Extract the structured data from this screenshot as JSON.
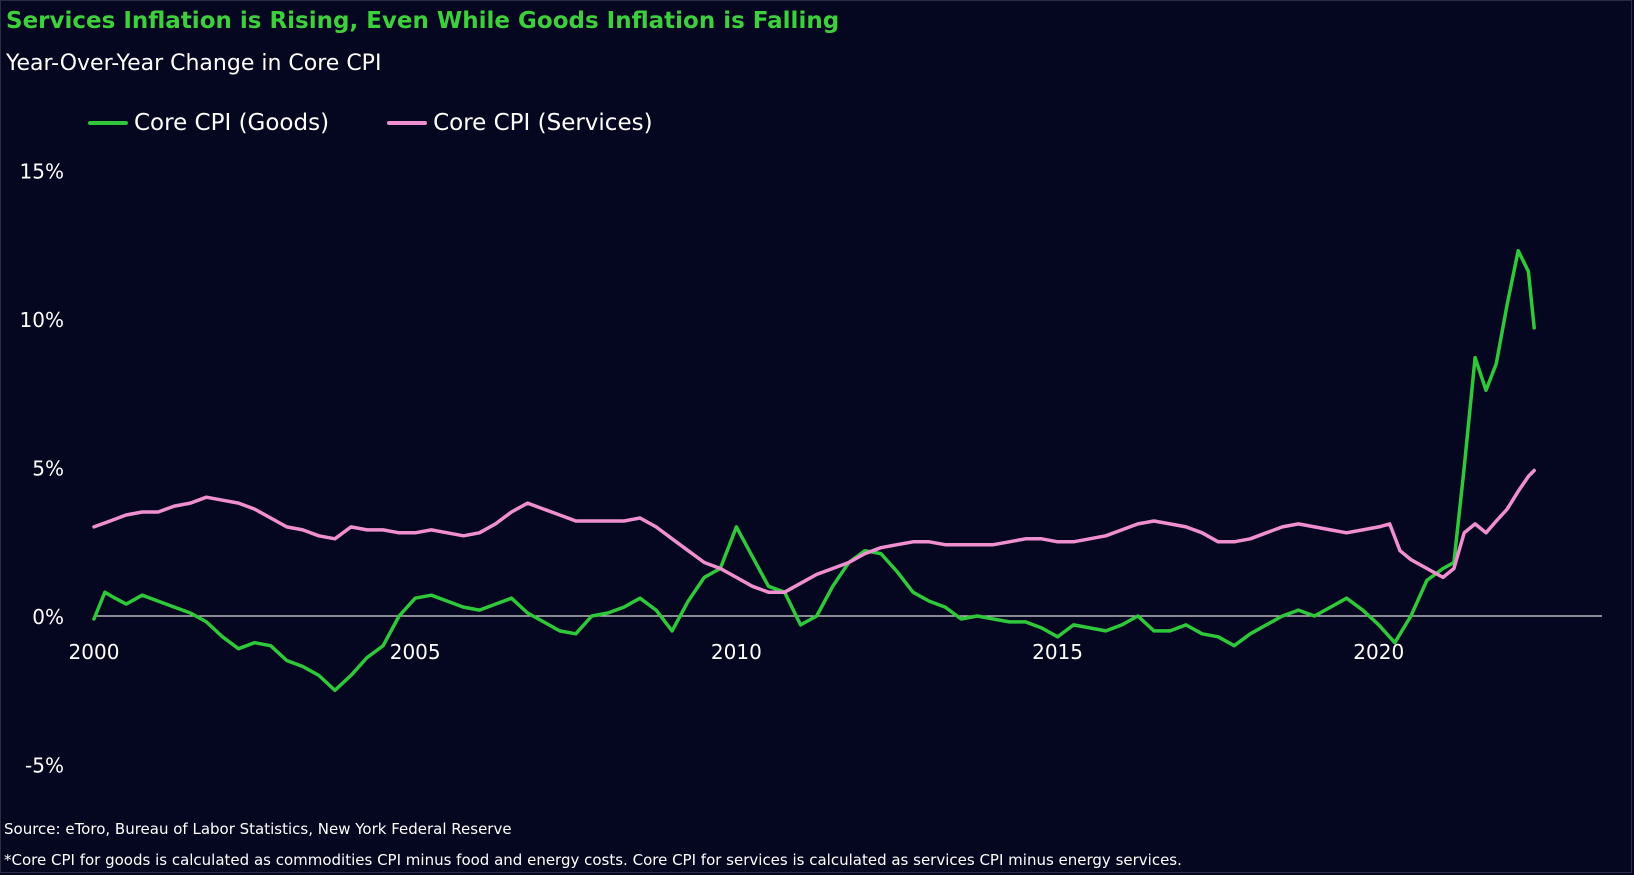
{
  "colors": {
    "background": "#05061f",
    "goods": "#2fc83a",
    "services": "#f08fd0",
    "title": "#3ecf3e",
    "zero_line": "#d8d8d8"
  },
  "chart_data": {
    "type": "line",
    "title": "Services Inflation is Rising, Even While Goods Inflation is Falling",
    "subtitle": "Year-Over-Year Change in Core CPI",
    "legend_position": "top-left",
    "grid": false,
    "xlim": [
      2000,
      2022.6
    ],
    "ylim": [
      -6,
      16
    ],
    "x_ticks": [
      2000,
      2005,
      2010,
      2015,
      2020
    ],
    "x_tick_labels": [
      "2000",
      "2005",
      "2010",
      "2015",
      "2020"
    ],
    "y_ticks": [
      15,
      10,
      5,
      0,
      -5
    ],
    "y_tick_labels": [
      "15%",
      "10%",
      "5%",
      "0%",
      "-5%"
    ],
    "series": [
      {
        "name": "Core CPI (Goods)",
        "color": "#2fc83a",
        "points": [
          [
            2000.0,
            -0.1
          ],
          [
            2000.17,
            0.8
          ],
          [
            2000.33,
            0.6
          ],
          [
            2000.5,
            0.4
          ],
          [
            2000.75,
            0.7
          ],
          [
            2001.0,
            0.5
          ],
          [
            2001.25,
            0.3
          ],
          [
            2001.5,
            0.1
          ],
          [
            2001.75,
            -0.2
          ],
          [
            2002.0,
            -0.7
          ],
          [
            2002.25,
            -1.1
          ],
          [
            2002.5,
            -0.9
          ],
          [
            2002.75,
            -1.0
          ],
          [
            2003.0,
            -1.5
          ],
          [
            2003.25,
            -1.7
          ],
          [
            2003.5,
            -2.0
          ],
          [
            2003.75,
            -2.5
          ],
          [
            2004.0,
            -2.0
          ],
          [
            2004.25,
            -1.4
          ],
          [
            2004.5,
            -1.0
          ],
          [
            2004.75,
            0.0
          ],
          [
            2005.0,
            0.6
          ],
          [
            2005.25,
            0.7
          ],
          [
            2005.5,
            0.5
          ],
          [
            2005.75,
            0.3
          ],
          [
            2006.0,
            0.2
          ],
          [
            2006.25,
            0.4
          ],
          [
            2006.5,
            0.6
          ],
          [
            2006.75,
            0.1
          ],
          [
            2007.0,
            -0.2
          ],
          [
            2007.25,
            -0.5
          ],
          [
            2007.5,
            -0.6
          ],
          [
            2007.75,
            0.0
          ],
          [
            2008.0,
            0.1
          ],
          [
            2008.25,
            0.3
          ],
          [
            2008.5,
            0.6
          ],
          [
            2008.75,
            0.2
          ],
          [
            2009.0,
            -0.5
          ],
          [
            2009.25,
            0.5
          ],
          [
            2009.5,
            1.3
          ],
          [
            2009.75,
            1.6
          ],
          [
            2010.0,
            3.0
          ],
          [
            2010.25,
            2.0
          ],
          [
            2010.5,
            1.0
          ],
          [
            2010.75,
            0.8
          ],
          [
            2011.0,
            -0.3
          ],
          [
            2011.25,
            0.0
          ],
          [
            2011.5,
            1.0
          ],
          [
            2011.75,
            1.8
          ],
          [
            2012.0,
            2.2
          ],
          [
            2012.25,
            2.1
          ],
          [
            2012.5,
            1.5
          ],
          [
            2012.75,
            0.8
          ],
          [
            2013.0,
            0.5
          ],
          [
            2013.25,
            0.3
          ],
          [
            2013.5,
            -0.1
          ],
          [
            2013.75,
            0.0
          ],
          [
            2014.0,
            -0.1
          ],
          [
            2014.25,
            -0.2
          ],
          [
            2014.5,
            -0.2
          ],
          [
            2014.75,
            -0.4
          ],
          [
            2015.0,
            -0.7
          ],
          [
            2015.25,
            -0.3
          ],
          [
            2015.5,
            -0.4
          ],
          [
            2015.75,
            -0.5
          ],
          [
            2016.0,
            -0.3
          ],
          [
            2016.25,
            0.0
          ],
          [
            2016.5,
            -0.5
          ],
          [
            2016.75,
            -0.5
          ],
          [
            2017.0,
            -0.3
          ],
          [
            2017.25,
            -0.6
          ],
          [
            2017.5,
            -0.7
          ],
          [
            2017.75,
            -1.0
          ],
          [
            2018.0,
            -0.6
          ],
          [
            2018.25,
            -0.3
          ],
          [
            2018.5,
            0.0
          ],
          [
            2018.75,
            0.2
          ],
          [
            2019.0,
            0.0
          ],
          [
            2019.25,
            0.3
          ],
          [
            2019.5,
            0.6
          ],
          [
            2019.75,
            0.2
          ],
          [
            2020.0,
            -0.3
          ],
          [
            2020.25,
            -0.9
          ],
          [
            2020.5,
            0.0
          ],
          [
            2020.75,
            1.2
          ],
          [
            2021.0,
            1.6
          ],
          [
            2021.17,
            1.8
          ],
          [
            2021.33,
            5.0
          ],
          [
            2021.5,
            8.7
          ],
          [
            2021.67,
            7.6
          ],
          [
            2021.83,
            8.5
          ],
          [
            2022.0,
            10.5
          ],
          [
            2022.17,
            12.3
          ],
          [
            2022.33,
            11.6
          ],
          [
            2022.42,
            9.7
          ]
        ]
      },
      {
        "name": "Core CPI (Services)",
        "color": "#f08fd0",
        "points": [
          [
            2000.0,
            3.0
          ],
          [
            2000.25,
            3.2
          ],
          [
            2000.5,
            3.4
          ],
          [
            2000.75,
            3.5
          ],
          [
            2001.0,
            3.5
          ],
          [
            2001.25,
            3.7
          ],
          [
            2001.5,
            3.8
          ],
          [
            2001.75,
            4.0
          ],
          [
            2002.0,
            3.9
          ],
          [
            2002.25,
            3.8
          ],
          [
            2002.5,
            3.6
          ],
          [
            2002.75,
            3.3
          ],
          [
            2003.0,
            3.0
          ],
          [
            2003.25,
            2.9
          ],
          [
            2003.5,
            2.7
          ],
          [
            2003.75,
            2.6
          ],
          [
            2004.0,
            3.0
          ],
          [
            2004.25,
            2.9
          ],
          [
            2004.5,
            2.9
          ],
          [
            2004.75,
            2.8
          ],
          [
            2005.0,
            2.8
          ],
          [
            2005.25,
            2.9
          ],
          [
            2005.5,
            2.8
          ],
          [
            2005.75,
            2.7
          ],
          [
            2006.0,
            2.8
          ],
          [
            2006.25,
            3.1
          ],
          [
            2006.5,
            3.5
          ],
          [
            2006.75,
            3.8
          ],
          [
            2007.0,
            3.6
          ],
          [
            2007.25,
            3.4
          ],
          [
            2007.5,
            3.2
          ],
          [
            2007.75,
            3.2
          ],
          [
            2008.0,
            3.2
          ],
          [
            2008.25,
            3.2
          ],
          [
            2008.5,
            3.3
          ],
          [
            2008.75,
            3.0
          ],
          [
            2009.0,
            2.6
          ],
          [
            2009.25,
            2.2
          ],
          [
            2009.5,
            1.8
          ],
          [
            2009.75,
            1.6
          ],
          [
            2010.0,
            1.3
          ],
          [
            2010.25,
            1.0
          ],
          [
            2010.5,
            0.8
          ],
          [
            2010.75,
            0.8
          ],
          [
            2011.0,
            1.1
          ],
          [
            2011.25,
            1.4
          ],
          [
            2011.5,
            1.6
          ],
          [
            2011.75,
            1.8
          ],
          [
            2012.0,
            2.1
          ],
          [
            2012.25,
            2.3
          ],
          [
            2012.5,
            2.4
          ],
          [
            2012.75,
            2.5
          ],
          [
            2013.0,
            2.5
          ],
          [
            2013.25,
            2.4
          ],
          [
            2013.5,
            2.4
          ],
          [
            2013.75,
            2.4
          ],
          [
            2014.0,
            2.4
          ],
          [
            2014.25,
            2.5
          ],
          [
            2014.5,
            2.6
          ],
          [
            2014.75,
            2.6
          ],
          [
            2015.0,
            2.5
          ],
          [
            2015.25,
            2.5
          ],
          [
            2015.5,
            2.6
          ],
          [
            2015.75,
            2.7
          ],
          [
            2016.0,
            2.9
          ],
          [
            2016.25,
            3.1
          ],
          [
            2016.5,
            3.2
          ],
          [
            2016.75,
            3.1
          ],
          [
            2017.0,
            3.0
          ],
          [
            2017.25,
            2.8
          ],
          [
            2017.5,
            2.5
          ],
          [
            2017.75,
            2.5
          ],
          [
            2018.0,
            2.6
          ],
          [
            2018.25,
            2.8
          ],
          [
            2018.5,
            3.0
          ],
          [
            2018.75,
            3.1
          ],
          [
            2019.0,
            3.0
          ],
          [
            2019.25,
            2.9
          ],
          [
            2019.5,
            2.8
          ],
          [
            2019.75,
            2.9
          ],
          [
            2020.0,
            3.0
          ],
          [
            2020.17,
            3.1
          ],
          [
            2020.33,
            2.2
          ],
          [
            2020.5,
            1.9
          ],
          [
            2020.75,
            1.6
          ],
          [
            2021.0,
            1.3
          ],
          [
            2021.17,
            1.6
          ],
          [
            2021.33,
            2.8
          ],
          [
            2021.5,
            3.1
          ],
          [
            2021.67,
            2.8
          ],
          [
            2021.83,
            3.2
          ],
          [
            2022.0,
            3.6
          ],
          [
            2022.17,
            4.2
          ],
          [
            2022.33,
            4.7
          ],
          [
            2022.42,
            4.9
          ]
        ]
      }
    ]
  },
  "footer": {
    "source": "Source: eToro, Bureau of Labor Statistics, New York Federal Reserve",
    "note": "*Core CPI for goods is calculated as commodities CPI minus food and energy costs. Core CPI for services is calculated as services CPI minus energy services."
  }
}
